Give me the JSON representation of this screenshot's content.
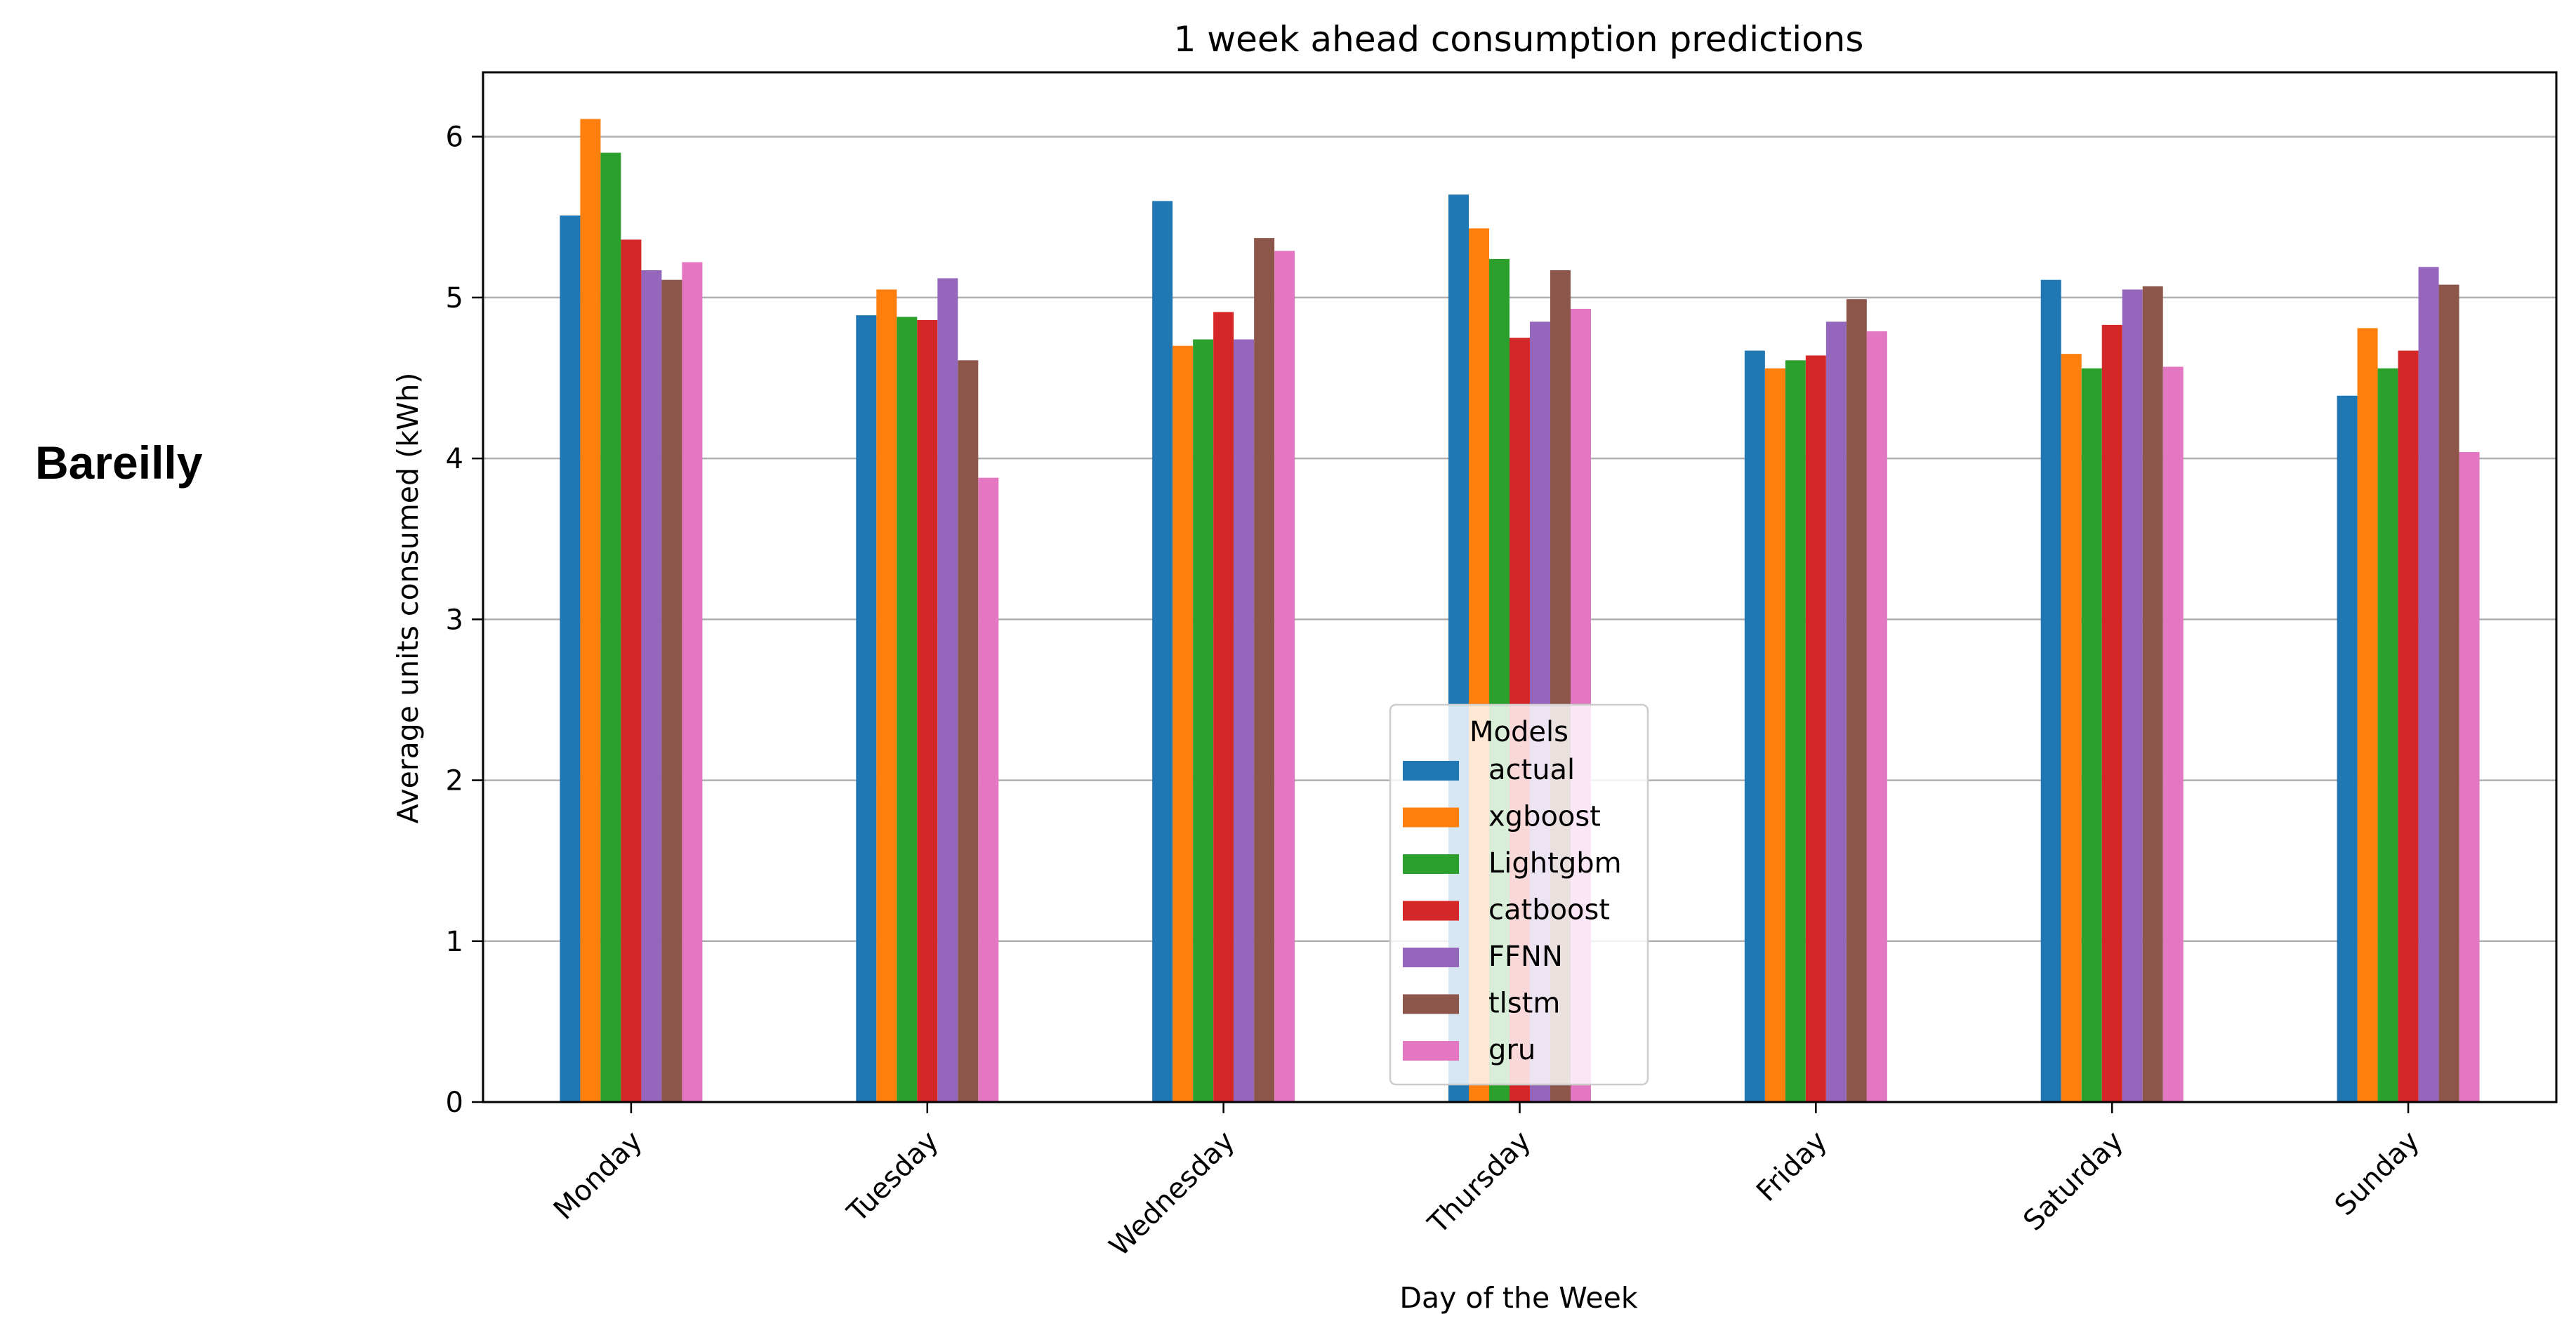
{
  "side_label": "Bareilly",
  "chart_data": {
    "type": "bar",
    "title": "1 week ahead consumption predictions",
    "xlabel": "Day of the Week",
    "ylabel": "Average units consumed (kWh)",
    "ylim": [
      0,
      6.4
    ],
    "yticks": [
      0,
      1,
      2,
      3,
      4,
      5,
      6
    ],
    "grid": "horizontal",
    "legend": {
      "title": "Models",
      "placement": "lower center"
    },
    "categories": [
      "Monday",
      "Tuesday",
      "Wednesday",
      "Thursday",
      "Friday",
      "Saturday",
      "Sunday"
    ],
    "series": [
      {
        "name": "actual",
        "color": "#1f77b4",
        "values": [
          5.51,
          4.89,
          5.6,
          5.64,
          4.67,
          5.11,
          4.39
        ]
      },
      {
        "name": "xgboost",
        "color": "#ff7f0e",
        "values": [
          6.11,
          5.05,
          4.7,
          5.43,
          4.56,
          4.65,
          4.81
        ]
      },
      {
        "name": "Lightgbm",
        "color": "#2ca02c",
        "values": [
          5.9,
          4.88,
          4.74,
          5.24,
          4.61,
          4.56,
          4.56
        ]
      },
      {
        "name": "catboost",
        "color": "#d62728",
        "values": [
          5.36,
          4.86,
          4.91,
          4.75,
          4.64,
          4.83,
          4.67
        ]
      },
      {
        "name": "FFNN",
        "color": "#9467bd",
        "values": [
          5.17,
          5.12,
          4.74,
          4.85,
          4.85,
          5.05,
          5.19
        ]
      },
      {
        "name": "tlstm",
        "color": "#8c564b",
        "values": [
          5.11,
          4.61,
          5.37,
          5.17,
          4.99,
          5.07,
          5.08
        ]
      },
      {
        "name": "gru",
        "color": "#e377c2",
        "values": [
          5.22,
          3.88,
          5.29,
          4.93,
          4.79,
          4.57,
          4.04
        ]
      }
    ]
  }
}
